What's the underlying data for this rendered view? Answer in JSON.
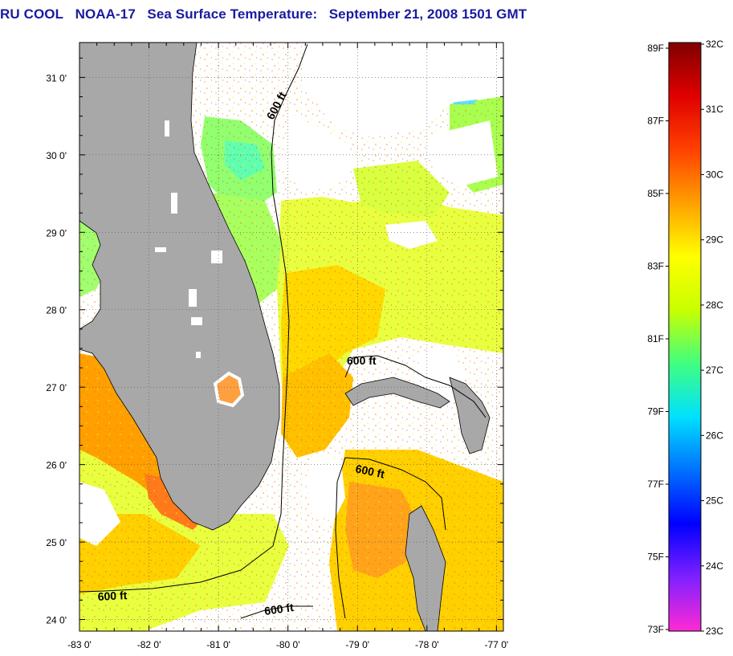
{
  "title": {
    "source": "RU COOL",
    "satellite": "NOAA-17",
    "product": "Sea Surface Temperature:",
    "datetime": "September 21, 2008 1501 GMT"
  },
  "map": {
    "lon_range": [
      -83,
      -76.9
    ],
    "lat_range": [
      23.85,
      31.45
    ],
    "lon_ticks": [
      {
        "value": -83,
        "label": "-83 0'"
      },
      {
        "value": -82,
        "label": "-82 0'"
      },
      {
        "value": -81,
        "label": "-81 0'"
      },
      {
        "value": -80,
        "label": "-80 0'"
      },
      {
        "value": -79,
        "label": "-79 0'"
      },
      {
        "value": -78,
        "label": "-78 0'"
      },
      {
        "value": -77,
        "label": "-77 0'"
      }
    ],
    "lat_ticks": [
      {
        "value": 31,
        "label": "31 0'"
      },
      {
        "value": 30,
        "label": "30 0'"
      },
      {
        "value": 29,
        "label": "29 0'"
      },
      {
        "value": 28,
        "label": "28 0'"
      },
      {
        "value": 27,
        "label": "27 0'"
      },
      {
        "value": 26,
        "label": "26 0'"
      },
      {
        "value": 25,
        "label": "25 0'"
      },
      {
        "value": 24,
        "label": "24 0'"
      }
    ],
    "contour_labels": [
      "600 ft",
      "600 ft",
      "600 ft",
      "600 ft",
      "600 ft"
    ],
    "land_color": "#a8a8a8",
    "cloud_color": "#ffffff"
  },
  "colorbar": {
    "fahrenheit": [
      "89F",
      "87F",
      "85F",
      "83F",
      "81F",
      "79F",
      "77F",
      "75F",
      "73F"
    ],
    "celsius": [
      "32C",
      "31C",
      "30C",
      "29C",
      "28C",
      "27C",
      "26C",
      "25C",
      "24C",
      "23C"
    ],
    "colors": [
      "#ff2ad4",
      "#8020ff",
      "#0000ff",
      "#0070ff",
      "#00e0ff",
      "#40ff80",
      "#c8ff00",
      "#ffff00",
      "#ffa000",
      "#ff4000",
      "#e00000",
      "#800000"
    ]
  }
}
